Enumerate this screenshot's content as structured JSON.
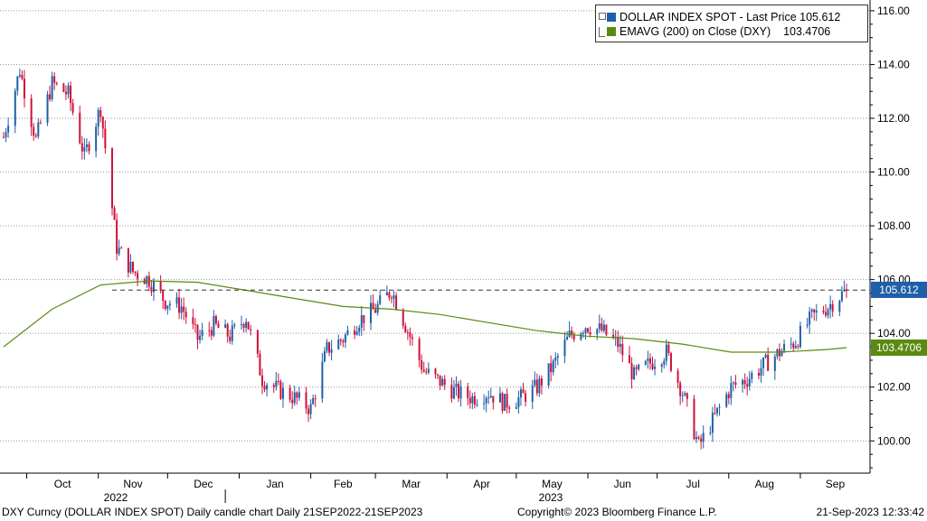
{
  "legend": {
    "series1_label": "DOLLAR INDEX SPOT - Last Price",
    "series1_value": "105.612",
    "series1_color": "#1f5fa8",
    "series2_label": "EMAVG (200)  on Close (DXY)",
    "series2_value": "103.4706",
    "series2_color": "#5a8a10"
  },
  "tags": {
    "last_price": "105.612",
    "ema": "103.4706"
  },
  "footer": {
    "left": "DXY Curncy (DOLLAR INDEX SPOT) Daily candle chart  Daily 21SEP2022-21SEP2023",
    "center": "Copyright© 2023 Bloomberg Finance L.P.",
    "right": "21-Sep-2023 12:33:42"
  },
  "chart_data": {
    "type": "line",
    "title": "",
    "xlabel": "",
    "ylabel": "",
    "ylim": [
      98.8,
      116.4
    ],
    "yticks": [
      "116.00",
      "114.00",
      "112.00",
      "110.00",
      "108.00",
      "106.00",
      "104.00",
      "102.00",
      "100.00"
    ],
    "months": [
      "Oct",
      "Nov",
      "Dec",
      "Jan",
      "Feb",
      "Mar",
      "Apr",
      "May",
      "Jun",
      "Jul",
      "Aug",
      "Sep"
    ],
    "years": [
      "2022",
      "2023"
    ],
    "colors": {
      "up": "#1f5fa8",
      "down": "#d0103a",
      "ema": "#5a8a10"
    },
    "last_price": 105.612,
    "series": [
      {
        "name": "DOLLAR INDEX SPOT - Last Price",
        "x": [
          "2022-09-21",
          "2022-09-28",
          "2022-10-05",
          "2022-10-12",
          "2022-10-19",
          "2022-10-26",
          "2022-11-02",
          "2022-11-09",
          "2022-11-16",
          "2022-11-23",
          "2022-11-30",
          "2022-12-07",
          "2022-12-14",
          "2022-12-21",
          "2022-12-28",
          "2023-01-04",
          "2023-01-11",
          "2023-01-18",
          "2023-01-25",
          "2023-02-01",
          "2023-02-08",
          "2023-02-15",
          "2023-02-22",
          "2023-03-01",
          "2023-03-08",
          "2023-03-15",
          "2023-03-22",
          "2023-03-29",
          "2023-04-05",
          "2023-04-12",
          "2023-04-19",
          "2023-04-26",
          "2023-05-03",
          "2023-05-10",
          "2023-05-17",
          "2023-05-24",
          "2023-05-31",
          "2023-06-07",
          "2023-06-14",
          "2023-06-21",
          "2023-06-28",
          "2023-07-05",
          "2023-07-12",
          "2023-07-19",
          "2023-07-26",
          "2023-08-02",
          "2023-08-09",
          "2023-08-16",
          "2023-08-23",
          "2023-08-30",
          "2023-09-06",
          "2023-09-13",
          "2023-09-21"
        ],
        "values": [
          111.3,
          113.8,
          111.2,
          113.3,
          112.9,
          110.6,
          112.4,
          107.2,
          106.3,
          106.0,
          105.2,
          105.0,
          103.8,
          104.3,
          103.9,
          104.6,
          102.3,
          101.9,
          101.6,
          101.2,
          103.4,
          103.8,
          104.5,
          104.9,
          105.6,
          104.1,
          102.6,
          102.2,
          101.8,
          101.6,
          101.8,
          101.4,
          101.6,
          102.0,
          102.8,
          103.9,
          104.3,
          104.1,
          103.6,
          102.4,
          102.9,
          103.3,
          101.8,
          99.8,
          100.9,
          102.0,
          102.3,
          102.8,
          103.3,
          103.7,
          104.6,
          105.0,
          105.61
        ]
      },
      {
        "name": "EMAVG (200)  on Close (DXY)",
        "x": [
          "2022-09-21",
          "2022-10-12",
          "2022-11-02",
          "2022-11-23",
          "2022-12-14",
          "2023-01-04",
          "2023-01-25",
          "2023-02-15",
          "2023-03-08",
          "2023-03-29",
          "2023-04-19",
          "2023-05-10",
          "2023-05-31",
          "2023-06-21",
          "2023-07-12",
          "2023-08-02",
          "2023-08-23",
          "2023-09-13",
          "2023-09-21"
        ],
        "values": [
          103.5,
          104.9,
          105.8,
          105.95,
          105.9,
          105.6,
          105.3,
          105.0,
          104.9,
          104.7,
          104.4,
          104.1,
          103.9,
          103.8,
          103.6,
          103.3,
          103.3,
          103.4,
          103.47
        ]
      }
    ]
  }
}
